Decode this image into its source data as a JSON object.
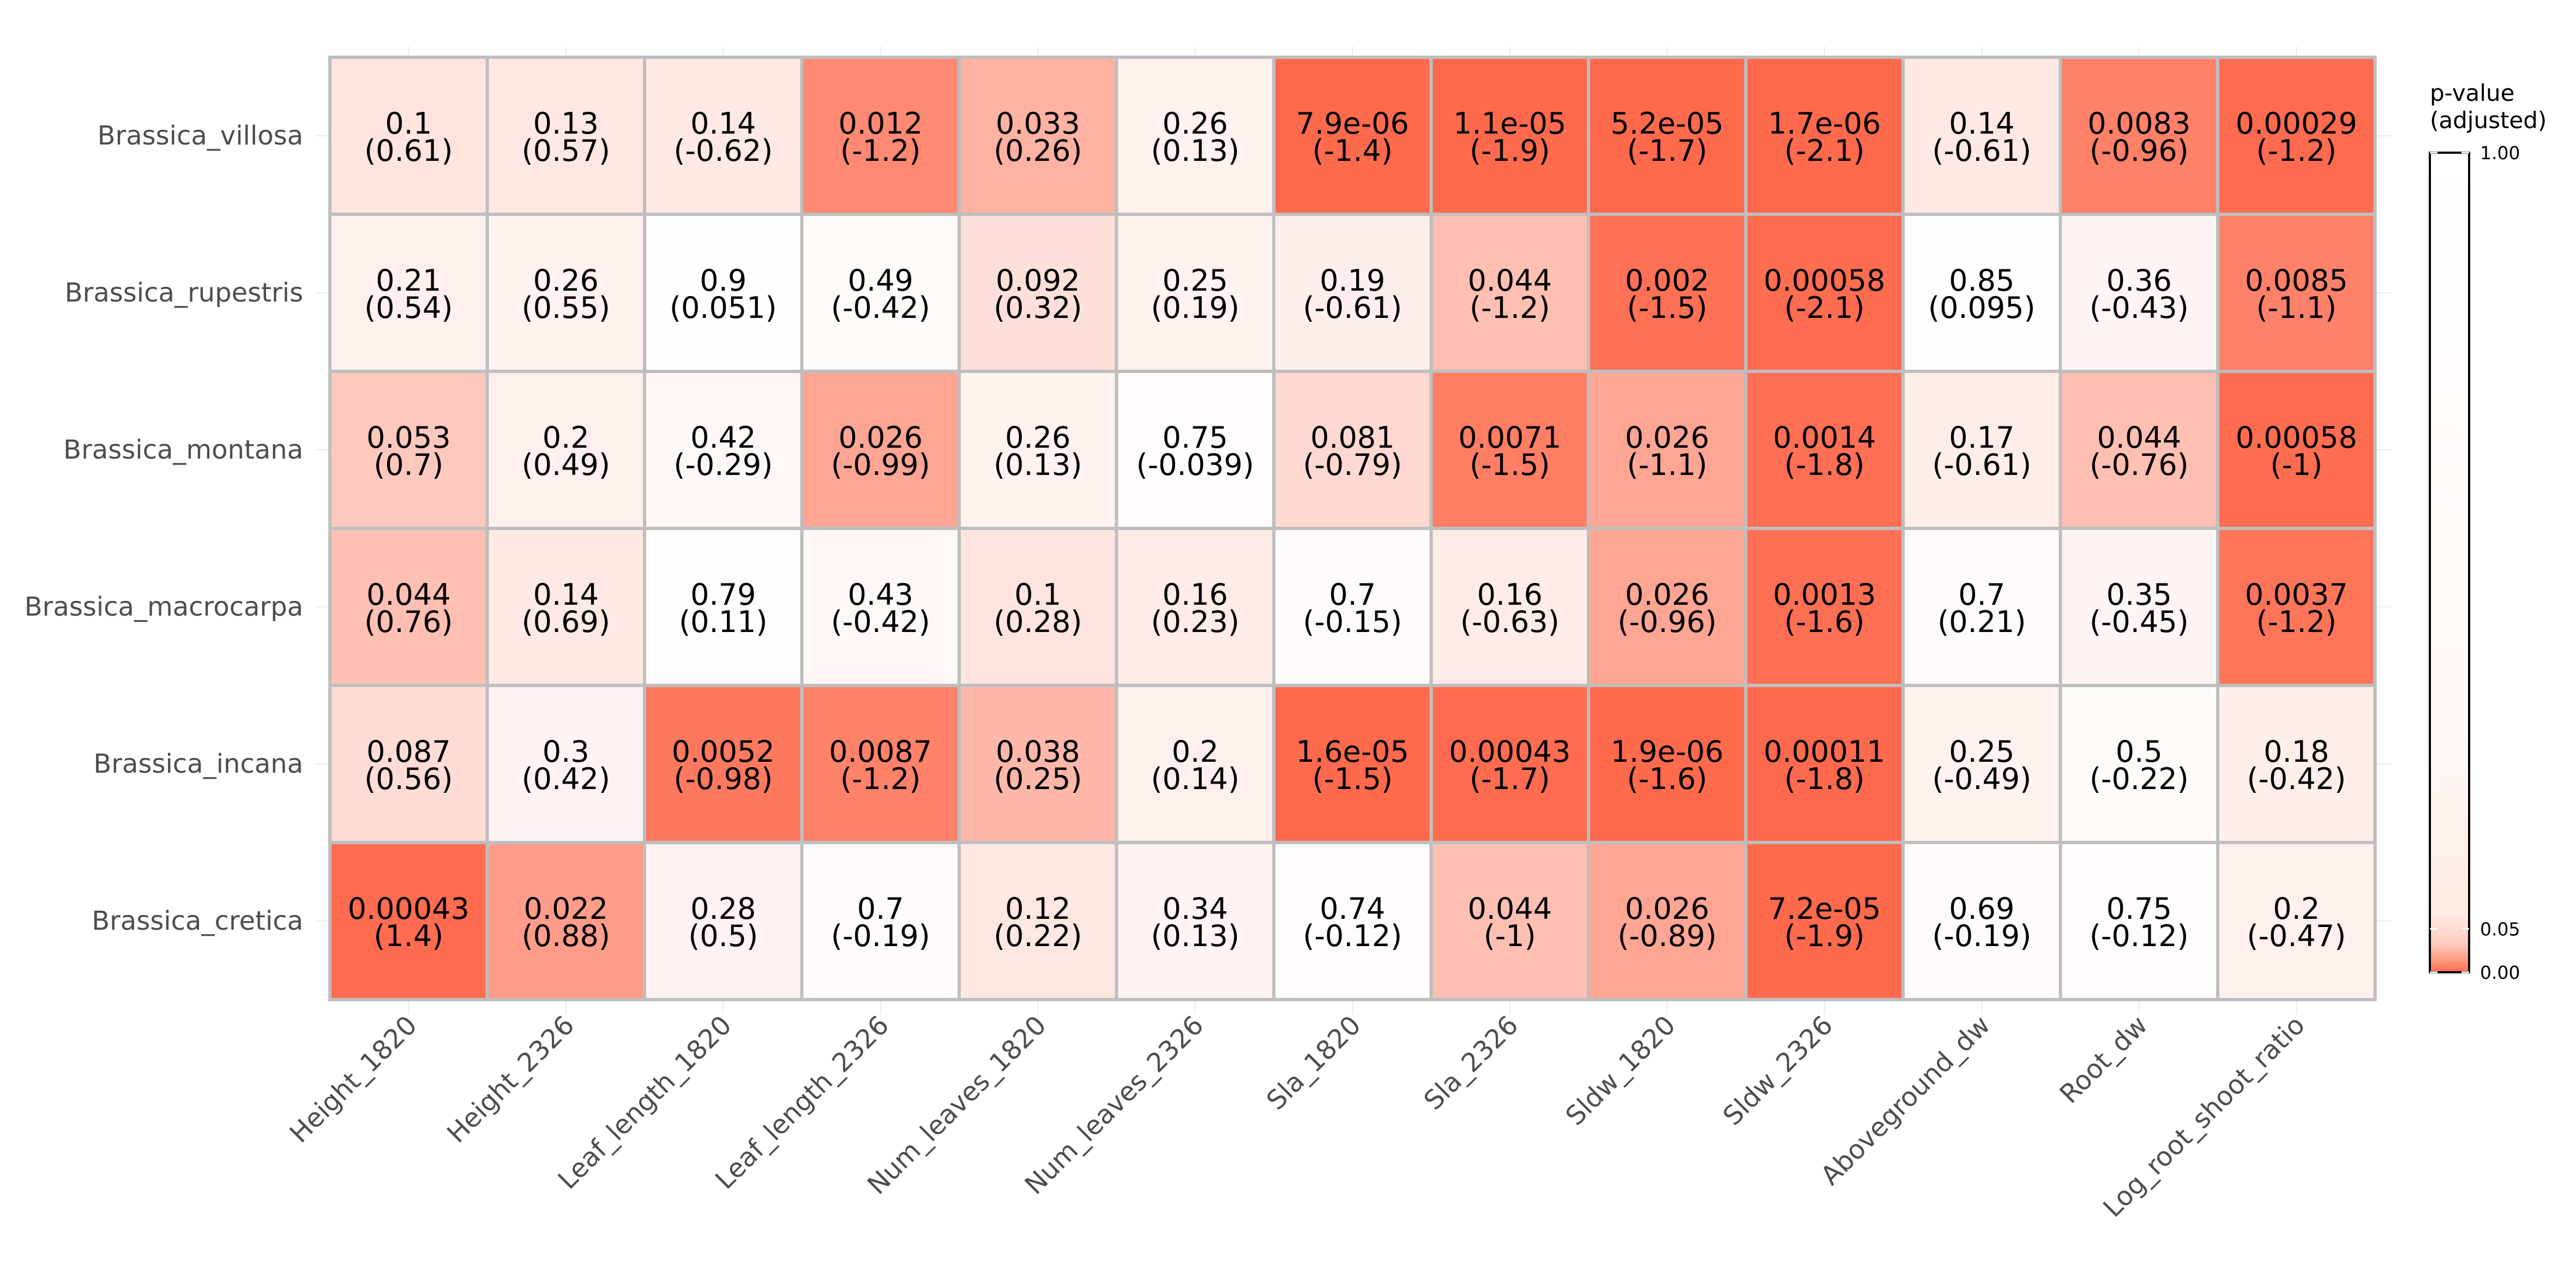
{
  "chart_data": {
    "type": "heatmap",
    "x_categories": [
      "Height_1820",
      "Height_2326",
      "Leaf_length_1820",
      "Leaf_length_2326",
      "Num_leaves_1820",
      "Num_leaves_2326",
      "Sla_1820",
      "Sla_2326",
      "Sldw_1820",
      "Sldw_2326",
      "Aboveground_dw",
      "Root_dw",
      "Log_root_shoot_ratio"
    ],
    "y_categories": [
      "Brassica_villosa",
      "Brassica_rupestris",
      "Brassica_montana",
      "Brassica_macrocarpa",
      "Brassica_incana",
      "Brassica_cretica"
    ],
    "cell_labels": [
      [
        [
          "0.1",
          "(0.61)"
        ],
        [
          "0.13",
          "(0.57)"
        ],
        [
          "0.14",
          "(-0.62)"
        ],
        [
          "0.012",
          "(-1.2)"
        ],
        [
          "0.033",
          "(0.26)"
        ],
        [
          "0.26",
          "(0.13)"
        ],
        [
          "7.9e-06",
          "(-1.4)"
        ],
        [
          "1.1e-05",
          "(-1.9)"
        ],
        [
          "5.2e-05",
          "(-1.7)"
        ],
        [
          "1.7e-06",
          "(-2.1)"
        ],
        [
          "0.14",
          "(-0.61)"
        ],
        [
          "0.0083",
          "(-0.96)"
        ],
        [
          "0.00029",
          "(-1.2)"
        ]
      ],
      [
        [
          "0.21",
          "(0.54)"
        ],
        [
          "0.26",
          "(0.55)"
        ],
        [
          "0.9",
          "(0.051)"
        ],
        [
          "0.49",
          "(-0.42)"
        ],
        [
          "0.092",
          "(0.32)"
        ],
        [
          "0.25",
          "(0.19)"
        ],
        [
          "0.19",
          "(-0.61)"
        ],
        [
          "0.044",
          "(-1.2)"
        ],
        [
          "0.002",
          "(-1.5)"
        ],
        [
          "0.00058",
          "(-2.1)"
        ],
        [
          "0.85",
          "(0.095)"
        ],
        [
          "0.36",
          "(-0.43)"
        ],
        [
          "0.0085",
          "(-1.1)"
        ]
      ],
      [
        [
          "0.053",
          "(0.7)"
        ],
        [
          "0.2",
          "(0.49)"
        ],
        [
          "0.42",
          "(-0.29)"
        ],
        [
          "0.026",
          "(-0.99)"
        ],
        [
          "0.26",
          "(0.13)"
        ],
        [
          "0.75",
          "(-0.039)"
        ],
        [
          "0.081",
          "(-0.79)"
        ],
        [
          "0.0071",
          "(-1.5)"
        ],
        [
          "0.026",
          "(-1.1)"
        ],
        [
          "0.0014",
          "(-1.8)"
        ],
        [
          "0.17",
          "(-0.61)"
        ],
        [
          "0.044",
          "(-0.76)"
        ],
        [
          "0.00058",
          "(-1)"
        ]
      ],
      [
        [
          "0.044",
          "(0.76)"
        ],
        [
          "0.14",
          "(0.69)"
        ],
        [
          "0.79",
          "(0.11)"
        ],
        [
          "0.43",
          "(-0.42)"
        ],
        [
          "0.1",
          "(0.28)"
        ],
        [
          "0.16",
          "(0.23)"
        ],
        [
          "0.7",
          "(-0.15)"
        ],
        [
          "0.16",
          "(-0.63)"
        ],
        [
          "0.026",
          "(-0.96)"
        ],
        [
          "0.0013",
          "(-1.6)"
        ],
        [
          "0.7",
          "(0.21)"
        ],
        [
          "0.35",
          "(-0.45)"
        ],
        [
          "0.0037",
          "(-1.2)"
        ]
      ],
      [
        [
          "0.087",
          "(0.56)"
        ],
        [
          "0.3",
          "(0.42)"
        ],
        [
          "0.0052",
          "(-0.98)"
        ],
        [
          "0.0087",
          "(-1.2)"
        ],
        [
          "0.038",
          "(0.25)"
        ],
        [
          "0.2",
          "(0.14)"
        ],
        [
          "1.6e-05",
          "(-1.5)"
        ],
        [
          "0.00043",
          "(-1.7)"
        ],
        [
          "1.9e-06",
          "(-1.6)"
        ],
        [
          "0.00011",
          "(-1.8)"
        ],
        [
          "0.25",
          "(-0.49)"
        ],
        [
          "0.5",
          "(-0.22)"
        ],
        [
          "0.18",
          "(-0.42)"
        ]
      ],
      [
        [
          "0.00043",
          "(1.4)"
        ],
        [
          "0.022",
          "(0.88)"
        ],
        [
          "0.28",
          "(0.5)"
        ],
        [
          "0.7",
          "(-0.19)"
        ],
        [
          "0.12",
          "(0.22)"
        ],
        [
          "0.34",
          "(0.13)"
        ],
        [
          "0.74",
          "(-0.12)"
        ],
        [
          "0.044",
          "(-1)"
        ],
        [
          "0.026",
          "(-0.89)"
        ],
        [
          "7.2e-05",
          "(-1.9)"
        ],
        [
          "0.69",
          "(-0.19)"
        ],
        [
          "0.75",
          "(-0.12)"
        ],
        [
          "0.2",
          "(-0.47)"
        ]
      ]
    ],
    "p_values": [
      [
        0.1,
        0.13,
        0.14,
        0.012,
        0.033,
        0.26,
        7.9e-06,
        1.1e-05,
        5.2e-05,
        1.7e-06,
        0.14,
        0.0083,
        0.00029
      ],
      [
        0.21,
        0.26,
        0.9,
        0.49,
        0.092,
        0.25,
        0.19,
        0.044,
        0.002,
        0.00058,
        0.85,
        0.36,
        0.0085
      ],
      [
        0.053,
        0.2,
        0.42,
        0.026,
        0.26,
        0.75,
        0.081,
        0.0071,
        0.026,
        0.0014,
        0.17,
        0.044,
        0.00058
      ],
      [
        0.044,
        0.14,
        0.79,
        0.43,
        0.1,
        0.16,
        0.7,
        0.16,
        0.026,
        0.0013,
        0.7,
        0.35,
        0.0037
      ],
      [
        0.087,
        0.3,
        0.0052,
        0.0087,
        0.038,
        0.2,
        1.6e-05,
        0.00043,
        1.9e-06,
        0.00011,
        0.25,
        0.5,
        0.18
      ],
      [
        0.00043,
        0.022,
        0.28,
        0.7,
        0.12,
        0.34,
        0.74,
        0.044,
        0.026,
        7.2e-05,
        0.69,
        0.75,
        0.2
      ]
    ],
    "legend": {
      "title_lines": [
        "p-value",
        "(adjusted)"
      ],
      "tick_labels": [
        "1.00",
        "0.05",
        "0.00"
      ],
      "tick_values": [
        1.0,
        0.05,
        0.0
      ],
      "color_low": "#FF6A4D",
      "color_high": "#FFFFFF",
      "placement": "right"
    },
    "grid": true
  }
}
